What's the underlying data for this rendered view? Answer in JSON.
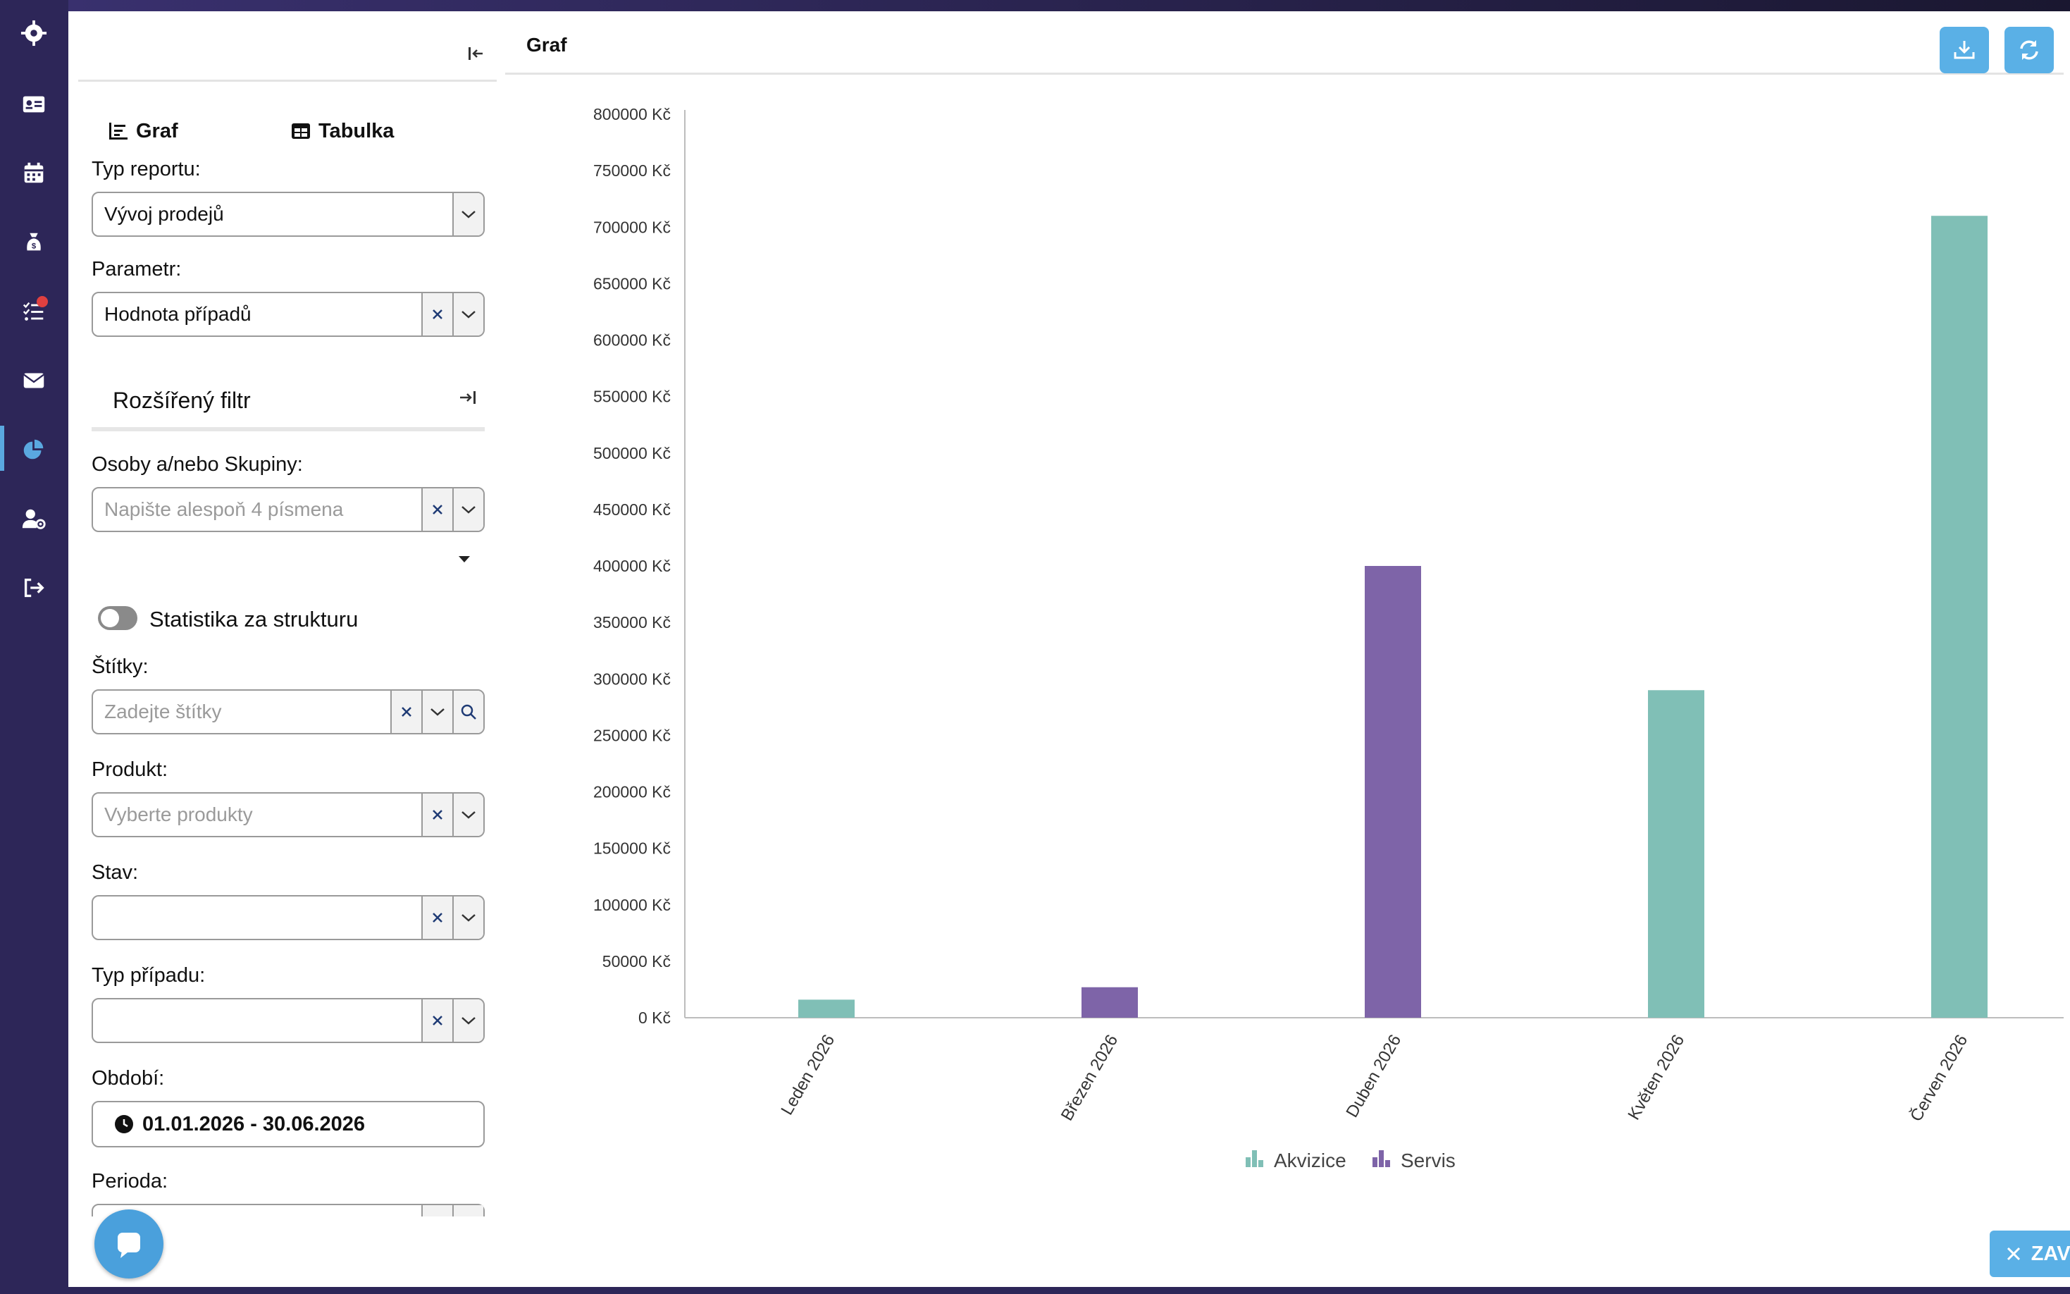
{
  "left_panel": {
    "tabs": [
      {
        "label": "Graf",
        "icon": "chart-icon"
      },
      {
        "label": "Tabulka",
        "icon": "table-icon"
      }
    ],
    "report_type": {
      "label": "Typ reportu:",
      "value": "Vývoj prodejů"
    },
    "parameter": {
      "label": "Parametr:",
      "value": "Hodnota případů"
    },
    "extended_filter": "Rozšířený filtr",
    "persons": {
      "label": "Osoby a/nebo Skupiny:",
      "placeholder": "Napište alespoň 4 písmena"
    },
    "structure_toggle": {
      "label": "Statistika za strukturu",
      "on": false
    },
    "tags": {
      "label": "Štítky:",
      "placeholder": "Zadejte štítky"
    },
    "product": {
      "label": "Produkt:",
      "placeholder": "Vyberte produkty"
    },
    "state": {
      "label": "Stav:",
      "value": ""
    },
    "case_type": {
      "label": "Typ případu:",
      "value": ""
    },
    "period": {
      "label": "Období:",
      "value": "01.01.2026 - 30.06.2026"
    },
    "periodicity": {
      "label": "Perioda:"
    }
  },
  "right_panel": {
    "title": "Graf"
  },
  "close_label": "ZAVŘÍT",
  "colors": {
    "akvizice": "#80bfb6",
    "servis": "#7e64a8",
    "accent": "#5ab0e6",
    "rail": "#2d2658"
  },
  "chart_data": {
    "type": "bar",
    "categories": [
      "Leden 2026",
      "Březen 2026",
      "Duben 2026",
      "Květen 2026",
      "Červen 2026"
    ],
    "series": [
      {
        "name": "Akvizice",
        "values": [
          16000,
          0,
          0,
          290000,
          710000
        ]
      },
      {
        "name": "Servis",
        "values": [
          0,
          27000,
          400000,
          0,
          0
        ]
      }
    ],
    "yticks": [
      "0 Kč",
      "50000 Kč",
      "100000 Kč",
      "150000 Kč",
      "200000 Kč",
      "250000 Kč",
      "300000 Kč",
      "350000 Kč",
      "400000 Kč",
      "450000 Kč",
      "500000 Kč",
      "550000 Kč",
      "600000 Kč",
      "650000 Kč",
      "700000 Kč",
      "750000 Kč",
      "800000 Kč"
    ],
    "ylim": [
      0,
      800000
    ],
    "legend": "bottom-center",
    "grid": false
  }
}
